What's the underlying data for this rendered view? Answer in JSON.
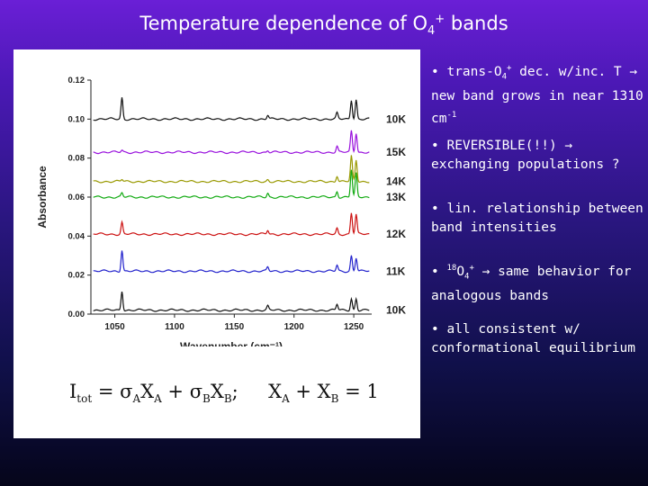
{
  "slide": {
    "title_text": "Temperature dependence of O",
    "title_sub": "4",
    "title_sup": "+",
    "title_tail": " bands"
  },
  "bullets": [
    {
      "prefix": "• trans-O",
      "sub": "4",
      "sup": "+",
      "text": " dec. w/inc. T → new band grows in near 1310 cm",
      "unit_sup": "-1"
    },
    {
      "text": "• REVERSIBLE(!!) → exchanging populations ?"
    },
    {
      "text": "• lin. relationship between band intensities"
    },
    {
      "prefix": "• ",
      "iso_sup": "18",
      "mol": "O",
      "sub": "4",
      "sup": "+",
      "text": " → same behavior for analogous bands"
    },
    {
      "text": "• all consistent w/ conformational equilibrium"
    }
  ],
  "equation": {
    "i": "I",
    "tot": "tot",
    "eq1": " = σ",
    "a1": "A",
    "x1": "X",
    "a2": "A",
    "plus": " + σ",
    "b1": "B",
    "x2": "X",
    "b2": "B",
    "semi": ";",
    "gap": "     ",
    "x3": "X",
    "a3": "A",
    "plus2": " + X",
    "b3": "B",
    "eq2": " = 1"
  },
  "colors": {
    "background_top": "#6a1fd6",
    "background_bottom": "#05051a",
    "panel": "#ffffff"
  },
  "chart_data": {
    "type": "line",
    "xlabel": "Wavenumber (cm⁻¹)",
    "ylabel": "Absorbance",
    "xlim": [
      1030,
      1265
    ],
    "ylim": [
      0.0,
      0.12
    ],
    "xticks": [
      1050,
      1100,
      1150,
      1200,
      1250
    ],
    "yticks": [
      "0.00",
      "0.02",
      "0.04",
      "0.06",
      "0.08",
      "0.10",
      "0.12"
    ],
    "grid": false,
    "legend": "right-of-traces",
    "series": [
      {
        "name": "10K",
        "color": "#111111",
        "baseline": 0.002,
        "peaks": [
          {
            "x": 1056,
            "h": 0.01
          },
          {
            "x": 1178,
            "h": 0.002
          },
          {
            "x": 1236,
            "h": 0.003
          },
          {
            "x": 1248,
            "h": 0.006
          },
          {
            "x": 1252,
            "h": 0.006
          }
        ]
      },
      {
        "name": "11K",
        "color": "#2222cc",
        "baseline": 0.022,
        "peaks": [
          {
            "x": 1056,
            "h": 0.011
          },
          {
            "x": 1178,
            "h": 0.002
          },
          {
            "x": 1236,
            "h": 0.003
          },
          {
            "x": 1248,
            "h": 0.008
          },
          {
            "x": 1252,
            "h": 0.007
          }
        ]
      },
      {
        "name": "12K",
        "color": "#cc1111",
        "baseline": 0.041,
        "peaks": [
          {
            "x": 1056,
            "h": 0.006
          },
          {
            "x": 1178,
            "h": 0.002
          },
          {
            "x": 1236,
            "h": 0.003
          },
          {
            "x": 1248,
            "h": 0.011
          },
          {
            "x": 1252,
            "h": 0.01
          }
        ]
      },
      {
        "name": "13K",
        "color": "#11aa11",
        "baseline": 0.06,
        "peaks": [
          {
            "x": 1056,
            "h": 0.002
          },
          {
            "x": 1178,
            "h": 0.002
          },
          {
            "x": 1236,
            "h": 0.003
          },
          {
            "x": 1248,
            "h": 0.014
          },
          {
            "x": 1252,
            "h": 0.012
          }
        ]
      },
      {
        "name": "14K",
        "color": "#999900",
        "baseline": 0.068,
        "peaks": [
          {
            "x": 1056,
            "h": 0.001
          },
          {
            "x": 1178,
            "h": 0.001
          },
          {
            "x": 1236,
            "h": 0.003
          },
          {
            "x": 1248,
            "h": 0.013
          },
          {
            "x": 1252,
            "h": 0.011
          }
        ]
      },
      {
        "name": "15K",
        "color": "#9911dd",
        "baseline": 0.083,
        "peaks": [
          {
            "x": 1056,
            "h": 0.001
          },
          {
            "x": 1178,
            "h": 0.001
          },
          {
            "x": 1236,
            "h": 0.003
          },
          {
            "x": 1248,
            "h": 0.011
          },
          {
            "x": 1252,
            "h": 0.01
          }
        ]
      },
      {
        "name": "10K",
        "color": "#111111",
        "baseline": 0.1,
        "peaks": [
          {
            "x": 1056,
            "h": 0.011
          },
          {
            "x": 1178,
            "h": 0.002
          },
          {
            "x": 1236,
            "h": 0.003
          },
          {
            "x": 1248,
            "h": 0.01
          },
          {
            "x": 1252,
            "h": 0.01
          }
        ]
      }
    ]
  }
}
